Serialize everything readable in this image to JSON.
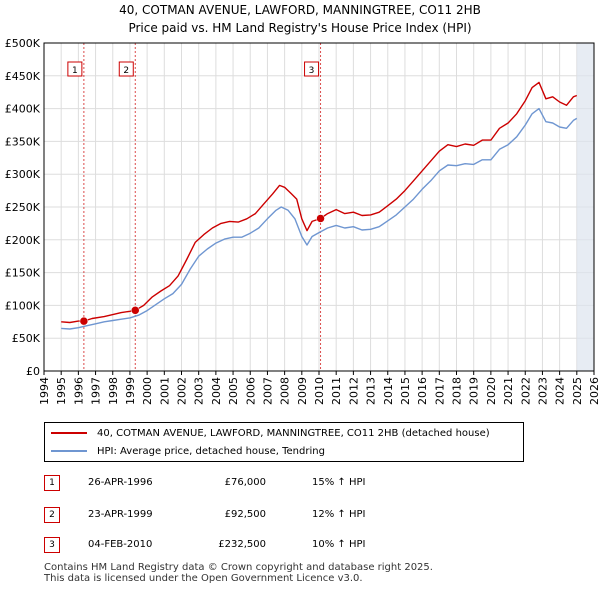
{
  "title": {
    "line1": "40, COTMAN AVENUE, LAWFORD, MANNINGTREE, CO11 2HB",
    "line2": "Price paid vs. HM Land Registry's House Price Index (HPI)"
  },
  "colors": {
    "property": "#cc0000",
    "hpi": "#6f96d1",
    "axes": "#000000",
    "grid": "#dddddd",
    "sale_marker": "#cc0000",
    "future_shade": "#dde4ee"
  },
  "chart_data": {
    "type": "line",
    "title": "40, COTMAN AVENUE, LAWFORD, MANNINGTREE, CO11 2HB — Price paid vs. HM Land Registry's House Price Index (HPI)",
    "xlabel": "",
    "ylabel": "",
    "xlim": [
      1994,
      2026
    ],
    "ylim": [
      0,
      500000
    ],
    "grid": true,
    "x_ticks": [
      "1994",
      "1995",
      "1996",
      "1997",
      "1998",
      "1999",
      "2000",
      "2001",
      "2002",
      "2003",
      "2004",
      "2005",
      "2006",
      "2007",
      "2008",
      "2009",
      "2010",
      "2011",
      "2012",
      "2013",
      "2014",
      "2015",
      "2016",
      "2017",
      "2018",
      "2019",
      "2020",
      "2021",
      "2022",
      "2023",
      "2024",
      "2025",
      "2026"
    ],
    "y_ticks": [
      {
        "value": 0,
        "label": "£0"
      },
      {
        "value": 50000,
        "label": "£50K"
      },
      {
        "value": 100000,
        "label": "£100K"
      },
      {
        "value": 150000,
        "label": "£150K"
      },
      {
        "value": 200000,
        "label": "£200K"
      },
      {
        "value": 250000,
        "label": "£250K"
      },
      {
        "value": 300000,
        "label": "£300K"
      },
      {
        "value": 350000,
        "label": "£350K"
      },
      {
        "value": 400000,
        "label": "£400K"
      },
      {
        "value": 450000,
        "label": "£450K"
      },
      {
        "value": 500000,
        "label": "£500K"
      }
    ],
    "shaded_after": 2025.0,
    "series": [
      {
        "name": "40, COTMAN AVENUE, LAWFORD, MANNINGTREE, CO11 2HB (detached house)",
        "color": "#cc0000",
        "x": [
          1995.0,
          1995.5,
          1996.0,
          1996.32,
          1996.8,
          1997.5,
          1998.0,
          1998.5,
          1999.0,
          1999.31,
          1999.8,
          2000.3,
          2000.8,
          2001.3,
          2001.8,
          2002.3,
          2002.8,
          2003.3,
          2003.8,
          2004.3,
          2004.8,
          2005.3,
          2005.8,
          2006.3,
          2006.8,
          2007.3,
          2007.7,
          2008.0,
          2008.4,
          2008.7,
          2009.0,
          2009.3,
          2009.6,
          2010.09,
          2010.5,
          2011.0,
          2011.5,
          2012.0,
          2012.5,
          2013.0,
          2013.5,
          2014.0,
          2014.5,
          2015.0,
          2015.5,
          2016.0,
          2016.5,
          2017.0,
          2017.5,
          2018.0,
          2018.5,
          2019.0,
          2019.5,
          2020.0,
          2020.5,
          2021.0,
          2021.5,
          2022.0,
          2022.4,
          2022.8,
          2023.2,
          2023.6,
          2024.0,
          2024.4,
          2024.8,
          2025.0
        ],
        "y": [
          75000,
          74000,
          76000,
          76000,
          80000,
          83000,
          86000,
          89000,
          91000,
          92500,
          100000,
          113000,
          122000,
          130000,
          145000,
          170000,
          196000,
          208000,
          218000,
          225000,
          228000,
          227000,
          232000,
          240000,
          255000,
          270000,
          283000,
          280000,
          270000,
          262000,
          232000,
          214000,
          228000,
          232500,
          240000,
          246000,
          240000,
          242000,
          237000,
          238000,
          242000,
          252000,
          262000,
          275000,
          290000,
          305000,
          320000,
          335000,
          345000,
          342000,
          346000,
          344000,
          352000,
          352000,
          370000,
          378000,
          392000,
          412000,
          432000,
          440000,
          415000,
          418000,
          410000,
          405000,
          418000,
          420000
        ]
      },
      {
        "name": "HPI: Average price, detached house, Tendring",
        "color": "#6f96d1",
        "x": [
          1995.0,
          1995.5,
          1996.0,
          1996.5,
          1997.0,
          1997.5,
          1998.0,
          1998.5,
          1999.0,
          1999.5,
          2000.0,
          2000.5,
          2001.0,
          2001.5,
          2002.0,
          2002.5,
          2003.0,
          2003.5,
          2004.0,
          2004.5,
          2005.0,
          2005.5,
          2006.0,
          2006.5,
          2007.0,
          2007.5,
          2007.8,
          2008.2,
          2008.6,
          2009.0,
          2009.3,
          2009.6,
          2010.0,
          2010.5,
          2011.0,
          2011.5,
          2012.0,
          2012.5,
          2013.0,
          2013.5,
          2014.0,
          2014.5,
          2015.0,
          2015.5,
          2016.0,
          2016.5,
          2017.0,
          2017.5,
          2018.0,
          2018.5,
          2019.0,
          2019.5,
          2020.0,
          2020.5,
          2021.0,
          2021.5,
          2022.0,
          2022.4,
          2022.8,
          2023.2,
          2023.6,
          2024.0,
          2024.4,
          2024.8,
          2025.0
        ],
        "y": [
          65000,
          64000,
          66000,
          69000,
          72000,
          75000,
          77000,
          79000,
          81000,
          85000,
          92000,
          101000,
          110000,
          118000,
          132000,
          155000,
          175000,
          186000,
          195000,
          201000,
          204000,
          204000,
          210000,
          218000,
          232000,
          245000,
          250000,
          245000,
          232000,
          205000,
          192000,
          205000,
          211000,
          218000,
          222000,
          218000,
          220000,
          215000,
          216000,
          220000,
          229000,
          238000,
          250000,
          262000,
          277000,
          290000,
          305000,
          314000,
          313000,
          316000,
          315000,
          322000,
          322000,
          338000,
          345000,
          357000,
          375000,
          392000,
          400000,
          380000,
          378000,
          372000,
          370000,
          382000,
          385000
        ]
      }
    ],
    "sales": [
      {
        "num": "1",
        "x": 1996.32,
        "price": 76000,
        "date": "26-APR-1996",
        "price_label": "£76,000",
        "hpi_label": "15% ↑ HPI"
      },
      {
        "num": "2",
        "x": 1999.31,
        "price": 92500,
        "date": "23-APR-1999",
        "price_label": "£92,500",
        "hpi_label": "12% ↑ HPI"
      },
      {
        "num": "3",
        "x": 2010.09,
        "price": 232500,
        "date": "04-FEB-2010",
        "price_label": "£232,500",
        "hpi_label": "10% ↑ HPI"
      }
    ]
  },
  "legend": {
    "property_label": "40, COTMAN AVENUE, LAWFORD, MANNINGTREE, CO11 2HB (detached house)",
    "hpi_label": "HPI: Average price, detached house, Tendring"
  },
  "footer": {
    "line1": "Contains HM Land Registry data © Crown copyright and database right 2025.",
    "line2": "This data is licensed under the Open Government Licence v3.0."
  }
}
